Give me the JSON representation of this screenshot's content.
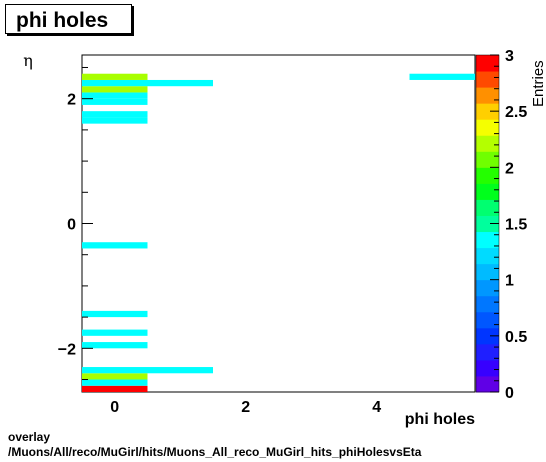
{
  "title": "phi holes",
  "footer": {
    "line1": "overlay",
    "line2": "/Muons/All/reco/MuGirl/hits/Muons_All_reco_MuGirl_hits_phiHolesvsEta"
  },
  "chart_data": {
    "type": "heatmap",
    "title": "phi holes",
    "xlabel": "phi holes",
    "ylabel": "η",
    "zlabel": "Entries",
    "xlim": [
      -0.5,
      5.5
    ],
    "ylim": [
      -2.7,
      2.7
    ],
    "zlim": [
      0,
      3
    ],
    "x_ticks": [
      "0",
      "2",
      "4"
    ],
    "y_ticks": [
      "−2",
      "0",
      "2"
    ],
    "z_ticks": [
      "0",
      "0.5",
      "1",
      "1.5",
      "2",
      "2.5",
      "3"
    ],
    "cells": [
      {
        "x": [
          -0.5,
          0.5
        ],
        "y": [
          -2.7,
          -2.6
        ],
        "z": 3
      },
      {
        "x": [
          -0.5,
          0.5
        ],
        "y": [
          -2.6,
          -2.5
        ],
        "z": 1
      },
      {
        "x": [
          -0.5,
          0.5
        ],
        "y": [
          -2.5,
          -2.4
        ],
        "z": 2
      },
      {
        "x": [
          -0.5,
          1.5
        ],
        "y": [
          -2.4,
          -2.3
        ],
        "z": 1
      },
      {
        "x": [
          -0.5,
          0.5
        ],
        "y": [
          -2.0,
          -1.9
        ],
        "z": 1
      },
      {
        "x": [
          -0.5,
          0.5
        ],
        "y": [
          -1.8,
          -1.7
        ],
        "z": 1
      },
      {
        "x": [
          -0.5,
          0.5
        ],
        "y": [
          -1.5,
          -1.4
        ],
        "z": 1
      },
      {
        "x": [
          -0.5,
          0.5
        ],
        "y": [
          -0.4,
          -0.3
        ],
        "z": 1
      },
      {
        "x": [
          -0.5,
          0.5
        ],
        "y": [
          1.6,
          1.7
        ],
        "z": 1
      },
      {
        "x": [
          -0.5,
          0.5
        ],
        "y": [
          1.7,
          1.8
        ],
        "z": 1
      },
      {
        "x": [
          -0.5,
          0.5
        ],
        "y": [
          1.9,
          2.0
        ],
        "z": 1
      },
      {
        "x": [
          -0.5,
          0.5
        ],
        "y": [
          2.0,
          2.1
        ],
        "z": 1
      },
      {
        "x": [
          -0.5,
          0.5
        ],
        "y": [
          2.1,
          2.2
        ],
        "z": 2
      },
      {
        "x": [
          -0.5,
          1.5
        ],
        "y": [
          2.2,
          2.3
        ],
        "z": 1
      },
      {
        "x": [
          -0.5,
          0.5
        ],
        "y": [
          2.3,
          2.4
        ],
        "z": 2
      },
      {
        "x": [
          4.5,
          5.5
        ],
        "y": [
          2.3,
          2.4
        ],
        "z": 1
      }
    ],
    "grid": false
  }
}
